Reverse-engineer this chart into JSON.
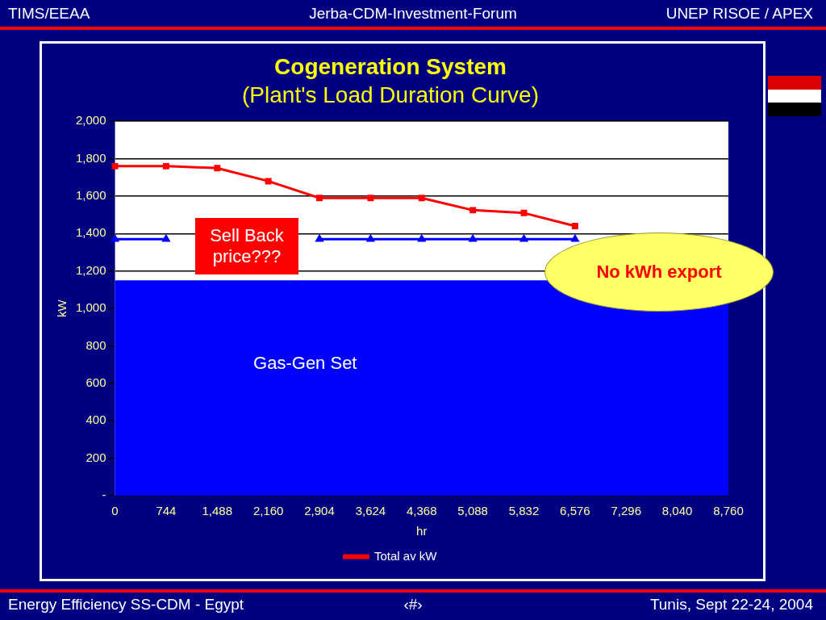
{
  "chart_data": {
    "type": "line",
    "title": "Cogeneration System",
    "subtitle": "(Plant's Load Duration Curve)",
    "xlabel": "hr",
    "ylabel": "kW",
    "categories": [
      "0",
      "744",
      "1,488",
      "2,160",
      "2,904",
      "3,624",
      "4,368",
      "5,088",
      "5,832",
      "6,576",
      "7,296",
      "8,040",
      "8,760"
    ],
    "series": [
      {
        "name": "Total av kW",
        "color": "#ff0000",
        "marker": "square",
        "values": [
          1760,
          1760,
          1750,
          1680,
          1590,
          1590,
          1590,
          1525,
          1510,
          1440,
          null,
          null,
          null
        ]
      },
      {
        "color": "#0000ff",
        "marker": "triangle",
        "values": [
          1370,
          1370,
          null,
          null,
          1370,
          1370,
          1370,
          1370,
          1370,
          1370,
          null,
          null,
          null
        ]
      }
    ],
    "ylim": [
      0,
      2000
    ],
    "yticks": [
      {
        "value": 0,
        "label": "-"
      },
      {
        "value": 200,
        "label": "200"
      },
      {
        "value": 400,
        "label": "400"
      },
      {
        "value": 600,
        "label": "600"
      },
      {
        "value": 800,
        "label": "800"
      },
      {
        "value": 1000,
        "label": "1,000"
      },
      {
        "value": 1200,
        "label": "1,200"
      },
      {
        "value": 1400,
        "label": "1,400"
      },
      {
        "value": 1600,
        "label": "1,600"
      },
      {
        "value": 1800,
        "label": "1,800"
      },
      {
        "value": 2000,
        "label": "2,000"
      }
    ],
    "bands": [
      {
        "axis": "y",
        "from": 0,
        "to": 1150,
        "label": "Gas-Gen Set",
        "color": "#0000ff"
      }
    ],
    "grid": "y",
    "legend": "bottom",
    "annotations": [
      "TIMS/EEAA",
      "Jerba-CDM-Investment-Forum",
      "UNEP RISOE / APEX",
      "Energy Efficiency SS-CDM - Egypt",
      "‹#›",
      "Tunis,  Sept 22-24, 2004",
      "Sell Back\nprice???",
      "No kWh export"
    ]
  }
}
